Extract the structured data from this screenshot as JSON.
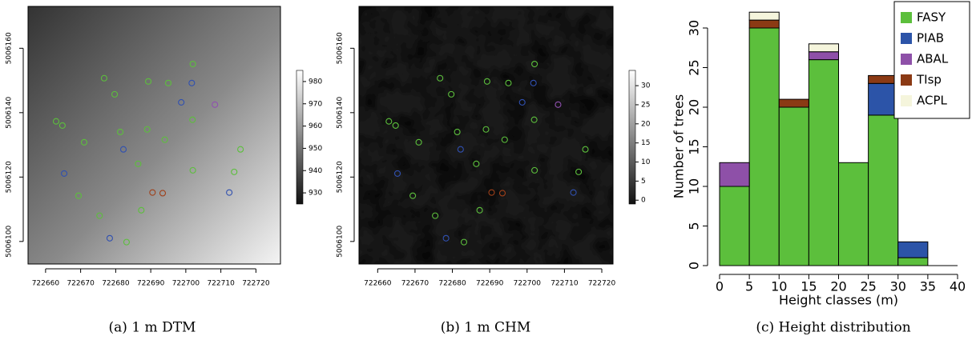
{
  "chart_data": [
    {
      "type": "raster-map",
      "caption": "(a) 1 m DTM",
      "xlim": [
        722655,
        722727
      ],
      "xticks": [
        722660,
        722670,
        722680,
        722690,
        722700,
        722710,
        722720
      ],
      "ylim": [
        5006093,
        5006173
      ],
      "yticks": [
        5006100,
        5006120,
        5006140,
        5006160
      ],
      "clim": [
        925,
        985
      ],
      "cticks": [
        930,
        940,
        950,
        960,
        970,
        980
      ],
      "series": [
        {
          "color": "#5cbf3c",
          "x": [
            722676.7,
            722689.3,
            722695,
            722663,
            722664.8,
            722671,
            722681.3,
            722689,
            722694,
            722701.9,
            722715.6,
            722702,
            722686.4,
            722669.4,
            722675.4,
            722683.1,
            722687.3,
            722713.8,
            722702,
            722679.7
          ],
          "y": [
            5006150.7,
            5006149.7,
            5006149.2,
            5006137.3,
            5006136,
            5006130.8,
            5006134,
            5006134.8,
            5006131.6,
            5006137.8,
            5006128.6,
            5006122.1,
            5006124.1,
            5006114.2,
            5006108,
            5006099.8,
            5006109.7,
            5006121.6,
            5006155.1,
            5006145.7
          ]
        },
        {
          "color": "#3050b0",
          "x": [
            722701.7,
            722698.7,
            722682.2,
            722665.3,
            722712.4,
            722678.3
          ],
          "y": [
            5006149.2,
            5006143.2,
            5006128.6,
            5006121.1,
            5006115.2,
            5006101
          ]
        },
        {
          "color": "#a0401a",
          "x": [
            722693.4,
            722690.5
          ],
          "y": [
            5006115,
            5006115.2
          ]
        },
        {
          "color": "#9050b0",
          "x": [
            722708.3
          ],
          "y": [
            5006142.5
          ]
        }
      ]
    },
    {
      "type": "raster-map",
      "caption": "(b) 1 m CHM",
      "xlim": [
        722655,
        722723
      ],
      "xticks": [
        722660,
        722670,
        722680,
        722690,
        722700,
        722710,
        722720
      ],
      "ylim": [
        5006093,
        5006173
      ],
      "yticks": [
        5006100,
        5006120,
        5006140,
        5006160
      ],
      "clim": [
        -1,
        34
      ],
      "cticks": [
        0,
        5,
        10,
        15,
        20,
        25,
        30
      ],
      "series": [
        {
          "color": "#5cbf3c",
          "x": [
            722676.7,
            722689.3,
            722695,
            722663,
            722664.8,
            722671,
            722681.3,
            722689,
            722694,
            722701.9,
            722715.6,
            722702,
            722686.4,
            722669.4,
            722675.4,
            722683.1,
            722687.3,
            722713.8,
            722702,
            722679.7
          ],
          "y": [
            5006150.7,
            5006149.7,
            5006149.2,
            5006137.3,
            5006136,
            5006130.8,
            5006134,
            5006134.8,
            5006131.6,
            5006137.8,
            5006128.6,
            5006122.1,
            5006124.1,
            5006114.2,
            5006108,
            5006099.8,
            5006109.7,
            5006121.6,
            5006155.1,
            5006145.7
          ]
        },
        {
          "color": "#3050b0",
          "x": [
            722701.7,
            722698.7,
            722682.2,
            722665.3,
            722712.4,
            722678.3
          ],
          "y": [
            5006149.2,
            5006143.2,
            5006128.6,
            5006121.1,
            5006115.2,
            5006101
          ]
        },
        {
          "color": "#a0401a",
          "x": [
            722693.4,
            722690.5
          ],
          "y": [
            5006115,
            5006115.2
          ]
        },
        {
          "color": "#9050b0",
          "x": [
            722708.3
          ],
          "y": [
            5006142.5
          ]
        }
      ]
    },
    {
      "type": "histogram",
      "caption": "(c) Height distribution",
      "xlabel": "Height classes (m)",
      "ylabel": "Number of trees",
      "bins": [
        0,
        5,
        10,
        15,
        20,
        25,
        30,
        35,
        40
      ],
      "xlim": [
        0,
        40
      ],
      "xticks": [
        0,
        5,
        10,
        15,
        20,
        25,
        30,
        35,
        40
      ],
      "ylim": [
        0,
        32
      ],
      "yticks": [
        0,
        5,
        10,
        15,
        20,
        25,
        30
      ],
      "legend": "top right",
      "series": [
        {
          "name": "FASY",
          "color": "#5cbf3c",
          "values": [
            10,
            30,
            20,
            26,
            13,
            19,
            1,
            0
          ]
        },
        {
          "name": "PIAB",
          "color": "#2c54a8",
          "values": [
            0,
            0,
            0,
            0,
            0,
            4,
            2,
            0
          ]
        },
        {
          "name": "ABAL",
          "color": "#8e50a8",
          "values": [
            3,
            0,
            0,
            1,
            0,
            0,
            0,
            0
          ]
        },
        {
          "name": "TIsp",
          "color": "#8b3a14",
          "values": [
            0,
            1,
            1,
            0,
            0,
            1,
            0,
            0
          ]
        },
        {
          "name": "ACPL",
          "color": "#f5f5dc",
          "values": [
            0,
            1,
            0,
            1,
            0,
            0,
            0,
            0
          ]
        }
      ]
    }
  ]
}
